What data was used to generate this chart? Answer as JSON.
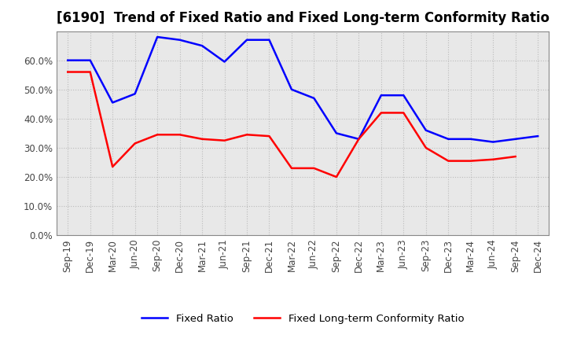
{
  "title": "[6190]  Trend of Fixed Ratio and Fixed Long-term Conformity Ratio",
  "x_labels": [
    "Sep-19",
    "Dec-19",
    "Mar-20",
    "Jun-20",
    "Sep-20",
    "Dec-20",
    "Mar-21",
    "Jun-21",
    "Sep-21",
    "Dec-21",
    "Mar-22",
    "Jun-22",
    "Sep-22",
    "Dec-22",
    "Mar-23",
    "Jun-23",
    "Sep-23",
    "Dec-23",
    "Mar-24",
    "Jun-24",
    "Sep-24",
    "Dec-24"
  ],
  "fixed_ratio": [
    60.0,
    60.0,
    45.5,
    48.5,
    68.0,
    67.0,
    65.0,
    59.5,
    67.0,
    67.0,
    50.0,
    47.0,
    35.0,
    33.0,
    48.0,
    48.0,
    36.0,
    33.0,
    33.0,
    32.0,
    33.0,
    34.0
  ],
  "fixed_lt_ratio": [
    56.0,
    56.0,
    23.5,
    31.5,
    34.5,
    34.5,
    33.0,
    32.5,
    34.5,
    34.0,
    23.0,
    23.0,
    20.0,
    33.0,
    42.0,
    42.0,
    30.0,
    25.5,
    25.5,
    26.0,
    27.0,
    null
  ],
  "fixed_ratio_color": "#0000ff",
  "fixed_lt_ratio_color": "#ff0000",
  "ylim": [
    0,
    70
  ],
  "yticks": [
    0,
    10,
    20,
    30,
    40,
    50,
    60
  ],
  "ytick_labels": [
    "0.0%",
    "10.0%",
    "20.0%",
    "30.0%",
    "40.0%",
    "50.0%",
    "60.0%"
  ],
  "grid_color": "#bbbbbb",
  "background_color": "#ffffff",
  "plot_bg_color": "#e8e8e8",
  "legend_fixed_ratio": "Fixed Ratio",
  "legend_fixed_lt_ratio": "Fixed Long-term Conformity Ratio",
  "title_fontsize": 12,
  "axis_fontsize": 8.5,
  "legend_fontsize": 9.5,
  "linewidth": 1.8
}
